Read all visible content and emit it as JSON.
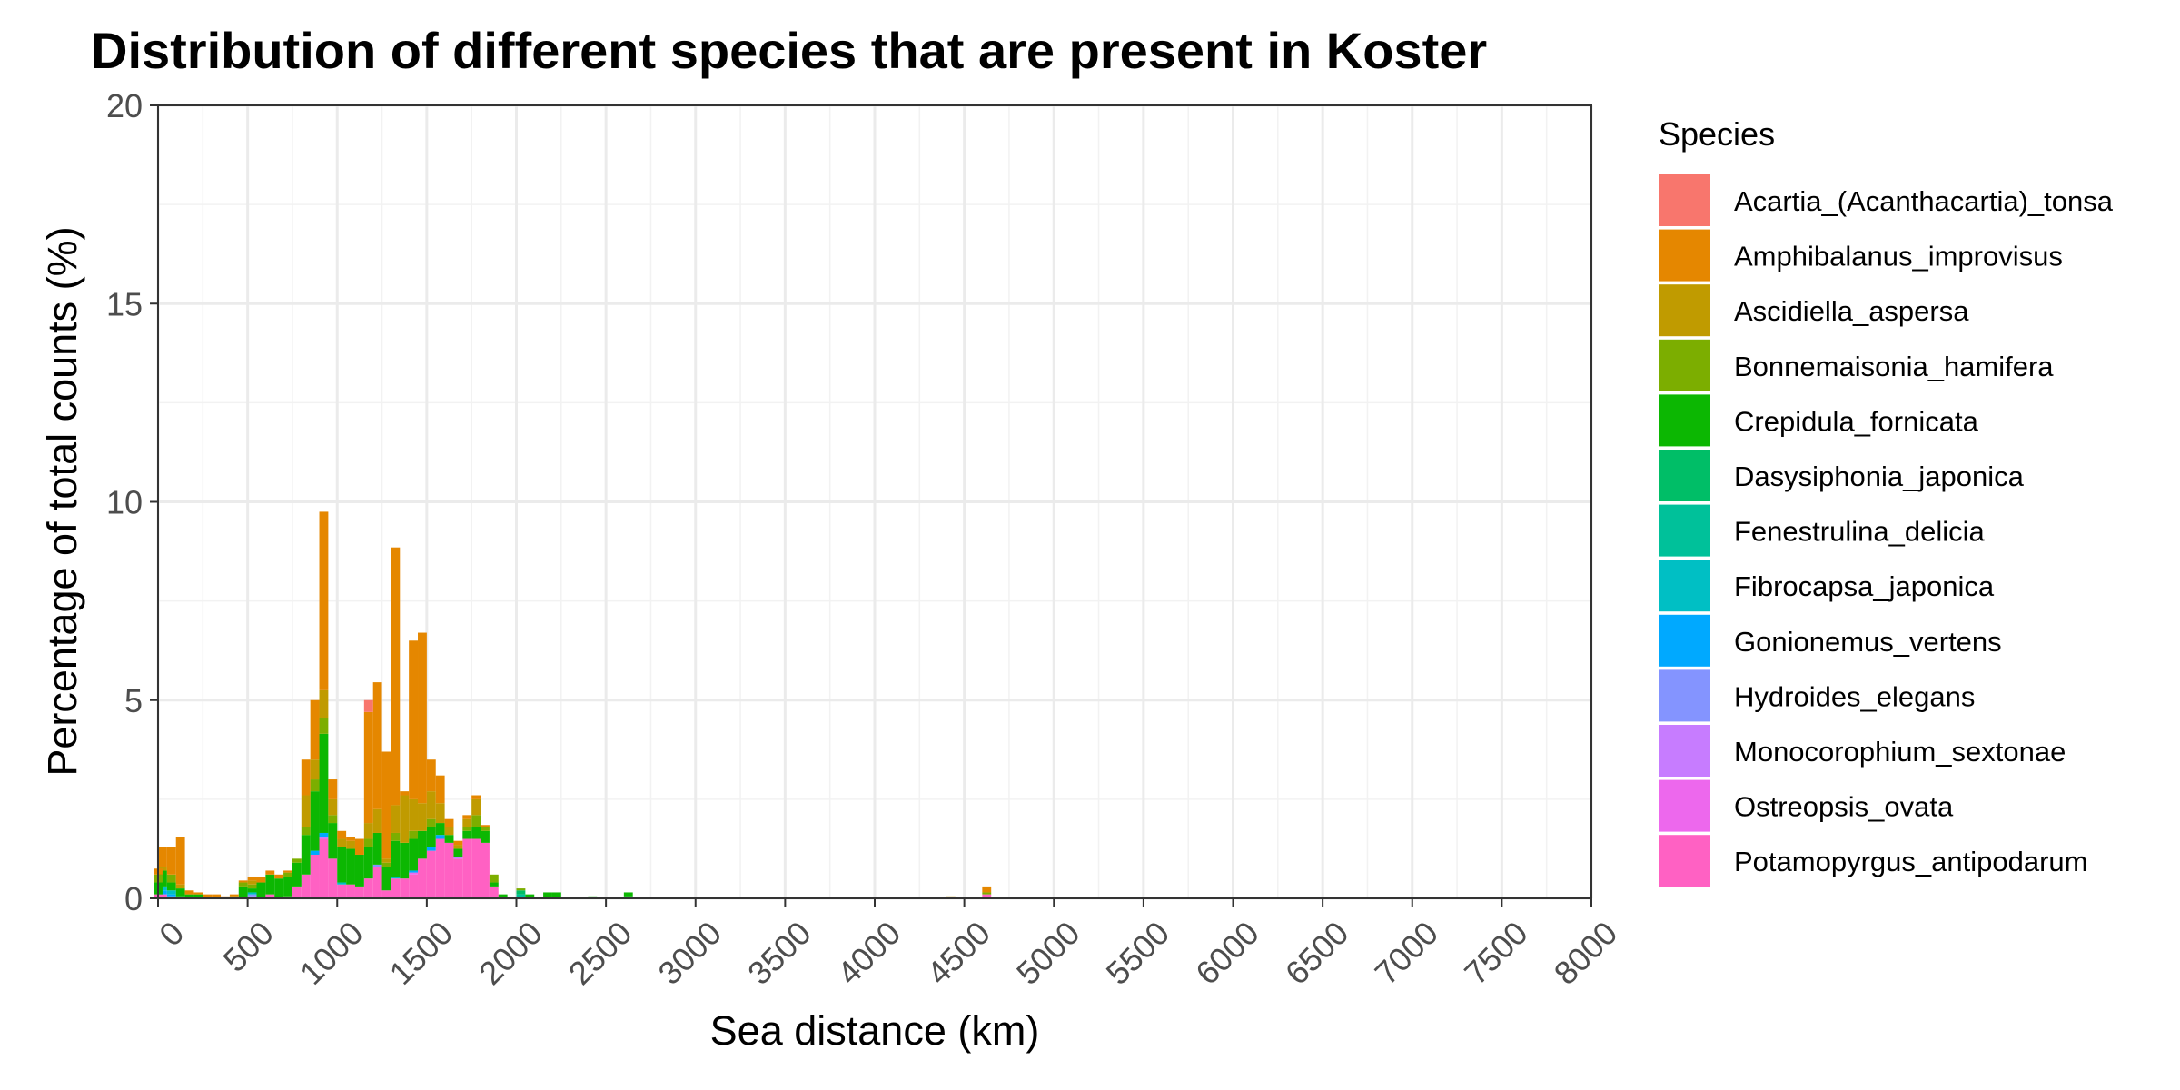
{
  "chart_data": {
    "type": "bar",
    "stacked": true,
    "title": "Distribution of different species that are present in Koster",
    "xlabel": "Sea distance (km)",
    "ylabel": "Percentage of total counts (%)",
    "xlim": [
      0,
      8000
    ],
    "ylim": [
      0,
      20
    ],
    "xticks": [
      0,
      500,
      1000,
      1500,
      2000,
      2500,
      3000,
      3500,
      4000,
      4500,
      5000,
      5500,
      6000,
      6500,
      7000,
      7500,
      8000
    ],
    "yticks": [
      0,
      5,
      10,
      15,
      20
    ],
    "bin_width": 50,
    "grid": true,
    "legend_title": "Species",
    "legend_position": "right",
    "series": [
      {
        "name": "Acartia_(Acanthacartia)_tonsa",
        "color": "#F8766D",
        "points": [
          [
            1175,
            0.3
          ]
        ]
      },
      {
        "name": "Amphibalanus_improvisus",
        "color": "#E58700",
        "points": [
          [
            0,
            0.15
          ],
          [
            25,
            0.5
          ],
          [
            75,
            0.7
          ],
          [
            125,
            1.2
          ],
          [
            175,
            0.1
          ],
          [
            225,
            0.05
          ],
          [
            275,
            0.1
          ],
          [
            325,
            0.1
          ],
          [
            375,
            0.05
          ],
          [
            425,
            0.05
          ],
          [
            475,
            0.05
          ],
          [
            525,
            0.1
          ],
          [
            575,
            0.15
          ],
          [
            625,
            0.1
          ],
          [
            675,
            0.1
          ],
          [
            725,
            0.05
          ],
          [
            825,
            0.9
          ],
          [
            875,
            1.5
          ],
          [
            925,
            4.5
          ],
          [
            975,
            0.5
          ],
          [
            1025,
            0.2
          ],
          [
            1075,
            0.1
          ],
          [
            1125,
            0.4
          ],
          [
            1175,
            2.8
          ],
          [
            1225,
            3.2
          ],
          [
            1275,
            2.7
          ],
          [
            1325,
            6.5
          ],
          [
            1375,
            0.1
          ],
          [
            1425,
            4.0
          ],
          [
            1475,
            4.3
          ],
          [
            1525,
            0.8
          ],
          [
            1575,
            0.7
          ],
          [
            1625,
            0.2
          ],
          [
            1675,
            0.1
          ],
          [
            1725,
            0.1
          ],
          [
            1775,
            0.1
          ],
          [
            1825,
            0.05
          ],
          [
            4625,
            0.15
          ]
        ]
      },
      {
        "name": "Ascidiella_aspersa",
        "color": "#C09B00",
        "points": [
          [
            25,
            0.1
          ],
          [
            125,
            0.1
          ],
          [
            525,
            0.1
          ],
          [
            825,
            0.8
          ],
          [
            875,
            0.5
          ],
          [
            925,
            0.7
          ],
          [
            975,
            0.4
          ],
          [
            1025,
            0.2
          ],
          [
            1075,
            0.2
          ],
          [
            1175,
            0.4
          ],
          [
            1225,
            0.6
          ],
          [
            1275,
            0.1
          ],
          [
            1325,
            0.7
          ],
          [
            1375,
            1.2
          ],
          [
            1425,
            0.8
          ],
          [
            1475,
            0.7
          ],
          [
            1525,
            0.7
          ],
          [
            1575,
            0.5
          ],
          [
            1625,
            0.2
          ],
          [
            1675,
            0.1
          ],
          [
            1725,
            0.2
          ],
          [
            1775,
            0.4
          ],
          [
            4425,
            0.05
          ]
        ]
      },
      {
        "name": "Bonnemaisonia_hamifera",
        "color": "#7CAE00",
        "points": [
          [
            0,
            0.2
          ],
          [
            75,
            0.2
          ],
          [
            475,
            0.1
          ],
          [
            525,
            0.1
          ],
          [
            725,
            0.1
          ],
          [
            775,
            0.1
          ],
          [
            825,
            0.2
          ],
          [
            875,
            0.3
          ],
          [
            925,
            0.4
          ],
          [
            975,
            0.2
          ],
          [
            1175,
            0.2
          ],
          [
            1275,
            0.1
          ],
          [
            1325,
            0.2
          ],
          [
            1425,
            0.2
          ],
          [
            1525,
            0.2
          ],
          [
            1725,
            0.1
          ],
          [
            1775,
            0.3
          ],
          [
            1825,
            0.1
          ],
          [
            1875,
            0.2
          ],
          [
            2025,
            0.05
          ],
          [
            4625,
            0.05
          ]
        ]
      },
      {
        "name": "Crepidula_fornicata",
        "color": "#0CB702",
        "points": [
          [
            0,
            0.3
          ],
          [
            25,
            0.4
          ],
          [
            75,
            0.2
          ],
          [
            125,
            0.2
          ],
          [
            175,
            0.1
          ],
          [
            225,
            0.1
          ],
          [
            425,
            0.05
          ],
          [
            475,
            0.3
          ],
          [
            525,
            0.1
          ],
          [
            575,
            0.4
          ],
          [
            625,
            0.5
          ],
          [
            675,
            0.5
          ],
          [
            725,
            0.5
          ],
          [
            775,
            0.6
          ],
          [
            825,
            1.0
          ],
          [
            875,
            1.5
          ],
          [
            925,
            2.5
          ],
          [
            975,
            0.9
          ],
          [
            1025,
            0.9
          ],
          [
            1075,
            0.9
          ],
          [
            1125,
            0.8
          ],
          [
            1175,
            0.8
          ],
          [
            1225,
            0.8
          ],
          [
            1275,
            0.6
          ],
          [
            1325,
            0.9
          ],
          [
            1375,
            0.9
          ],
          [
            1425,
            0.8
          ],
          [
            1475,
            0.7
          ],
          [
            1525,
            0.5
          ],
          [
            1575,
            0.3
          ],
          [
            1625,
            0.2
          ],
          [
            1675,
            0.2
          ],
          [
            1725,
            0.2
          ],
          [
            1775,
            0.3
          ],
          [
            1825,
            0.3
          ],
          [
            1875,
            0.1
          ],
          [
            1925,
            0.1
          ],
          [
            2075,
            0.1
          ],
          [
            2175,
            0.15
          ],
          [
            2225,
            0.15
          ],
          [
            2425,
            0.05
          ],
          [
            2625,
            0.1
          ]
        ]
      },
      {
        "name": "Dasysiphonia_japonica",
        "color": "#00BE67",
        "points": [
          [
            2025,
            0.1
          ],
          [
            2625,
            0.05
          ]
        ]
      },
      {
        "name": "Fenestrulina_delicia",
        "color": "#00C19A",
        "points": [
          [
            125,
            0.05
          ],
          [
            2025,
            0.1
          ]
        ]
      },
      {
        "name": "Fibrocapsa_japonica",
        "color": "#00BFC4",
        "points": [
          [
            25,
            0.1
          ],
          [
            75,
            0.1
          ],
          [
            525,
            0.05
          ],
          [
            1025,
            0.05
          ],
          [
            1325,
            0.05
          ]
        ]
      },
      {
        "name": "Gonionemus_vertens",
        "color": "#00A9FF",
        "points": [
          [
            25,
            0.1
          ],
          [
            75,
            0.05
          ],
          [
            875,
            0.1
          ],
          [
            925,
            0.1
          ],
          [
            1425,
            0.05
          ],
          [
            1525,
            0.1
          ],
          [
            1575,
            0.1
          ]
        ]
      },
      {
        "name": "Hydroides_elegans",
        "color": "#8494FF",
        "points": [
          [
            525,
            0.05
          ],
          [
            1225,
            0.05
          ]
        ]
      },
      {
        "name": "Monocorophium_sextonae",
        "color": "#C77CFF",
        "points": [
          [
            925,
            0.05
          ],
          [
            1675,
            0.05
          ]
        ]
      },
      {
        "name": "Ostreopsis_ovata",
        "color": "#ED68ED",
        "points": [
          [
            1425,
            0.05
          ],
          [
            4725,
            0.03
          ]
        ]
      },
      {
        "name": "Potamopyrgus_antipodarum",
        "color": "#FF61C3",
        "points": [
          [
            0,
            0.1
          ],
          [
            25,
            0.1
          ],
          [
            75,
            0.05
          ],
          [
            525,
            0.05
          ],
          [
            625,
            0.1
          ],
          [
            725,
            0.05
          ],
          [
            775,
            0.3
          ],
          [
            825,
            0.6
          ],
          [
            875,
            1.1
          ],
          [
            925,
            1.5
          ],
          [
            975,
            1.0
          ],
          [
            1025,
            0.35
          ],
          [
            1075,
            0.35
          ],
          [
            1125,
            0.3
          ],
          [
            1175,
            0.5
          ],
          [
            1225,
            0.8
          ],
          [
            1275,
            0.2
          ],
          [
            1325,
            0.5
          ],
          [
            1375,
            0.5
          ],
          [
            1425,
            0.6
          ],
          [
            1475,
            1.0
          ],
          [
            1525,
            1.2
          ],
          [
            1575,
            1.5
          ],
          [
            1625,
            1.4
          ],
          [
            1675,
            1.0
          ],
          [
            1725,
            1.5
          ],
          [
            1775,
            1.5
          ],
          [
            1825,
            1.4
          ],
          [
            1875,
            0.3
          ],
          [
            4625,
            0.1
          ]
        ]
      }
    ]
  }
}
